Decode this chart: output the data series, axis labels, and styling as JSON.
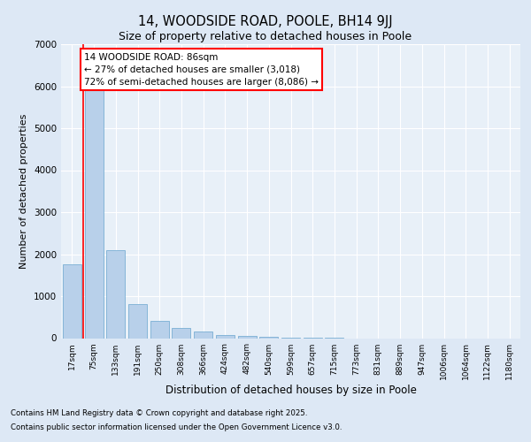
{
  "title_line1": "14, WOODSIDE ROAD, POOLE, BH14 9JJ",
  "title_line2": "Size of property relative to detached houses in Poole",
  "xlabel": "Distribution of detached houses by size in Poole",
  "ylabel": "Number of detached properties",
  "categories": [
    "17sqm",
    "75sqm",
    "133sqm",
    "191sqm",
    "250sqm",
    "308sqm",
    "366sqm",
    "424sqm",
    "482sqm",
    "540sqm",
    "599sqm",
    "657sqm",
    "715sqm",
    "773sqm",
    "831sqm",
    "889sqm",
    "947sqm",
    "1006sqm",
    "1064sqm",
    "1122sqm",
    "1180sqm"
  ],
  "values": [
    1750,
    6050,
    2100,
    820,
    420,
    250,
    150,
    75,
    50,
    25,
    15,
    5,
    3,
    0,
    0,
    0,
    0,
    0,
    0,
    0,
    0
  ],
  "bar_color": "#b8d0ea",
  "bar_edge_color": "#7aafd4",
  "annotation_title": "14 WOODSIDE ROAD: 86sqm",
  "annotation_line1": "← 27% of detached houses are smaller (3,018)",
  "annotation_line2": "72% of semi-detached houses are larger (8,086) →",
  "ylim": [
    0,
    7000
  ],
  "yticks": [
    0,
    1000,
    2000,
    3000,
    4000,
    5000,
    6000,
    7000
  ],
  "footnote1": "Contains HM Land Registry data © Crown copyright and database right 2025.",
  "footnote2": "Contains public sector information licensed under the Open Government Licence v3.0.",
  "bg_color": "#dde8f5",
  "plot_bg_color": "#e8f0f8"
}
